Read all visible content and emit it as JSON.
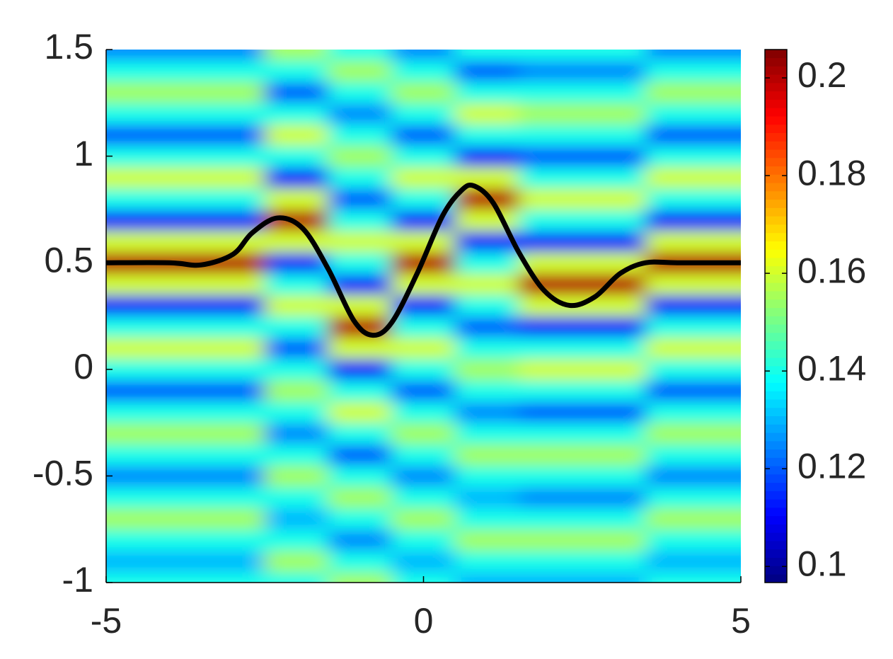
{
  "chart_data": {
    "type": "heatmap",
    "x": [
      -5,
      -4,
      -3,
      -2,
      -1,
      0,
      1,
      2,
      3,
      4,
      5
    ],
    "y": [
      -1,
      -0.9,
      -0.8,
      -0.7,
      -0.6,
      -0.5,
      -0.4,
      -0.3,
      -0.2,
      -0.1,
      0,
      0.1,
      0.2,
      0.3,
      0.4,
      0.5,
      0.6,
      0.7,
      0.8,
      0.9,
      1,
      1.1,
      1.2,
      1.3,
      1.4,
      1.5
    ],
    "z": [
      [
        0.14,
        0.14,
        0.14,
        0.14,
        0.155,
        0.14,
        0.13,
        0.13,
        0.13,
        0.14,
        0.14
      ],
      [
        0.13,
        0.13,
        0.13,
        0.155,
        0.14,
        0.13,
        0.14,
        0.14,
        0.14,
        0.13,
        0.13
      ],
      [
        0.14,
        0.14,
        0.14,
        0.14,
        0.125,
        0.14,
        0.155,
        0.155,
        0.155,
        0.14,
        0.14
      ],
      [
        0.155,
        0.155,
        0.155,
        0.13,
        0.14,
        0.155,
        0.14,
        0.14,
        0.14,
        0.155,
        0.155
      ],
      [
        0.14,
        0.14,
        0.14,
        0.14,
        0.155,
        0.14,
        0.13,
        0.125,
        0.125,
        0.14,
        0.14
      ],
      [
        0.125,
        0.125,
        0.125,
        0.155,
        0.14,
        0.125,
        0.14,
        0.14,
        0.14,
        0.125,
        0.125
      ],
      [
        0.14,
        0.14,
        0.14,
        0.14,
        0.12,
        0.14,
        0.155,
        0.155,
        0.155,
        0.14,
        0.14
      ],
      [
        0.155,
        0.155,
        0.155,
        0.125,
        0.14,
        0.155,
        0.14,
        0.14,
        0.14,
        0.155,
        0.155
      ],
      [
        0.14,
        0.14,
        0.14,
        0.14,
        0.16,
        0.14,
        0.125,
        0.12,
        0.12,
        0.14,
        0.14
      ],
      [
        0.12,
        0.12,
        0.12,
        0.155,
        0.14,
        0.12,
        0.14,
        0.14,
        0.14,
        0.12,
        0.12
      ],
      [
        0.14,
        0.14,
        0.14,
        0.14,
        0.11,
        0.14,
        0.155,
        0.16,
        0.16,
        0.14,
        0.14
      ],
      [
        0.16,
        0.16,
        0.16,
        0.12,
        0.16,
        0.16,
        0.14,
        0.14,
        0.14,
        0.16,
        0.16
      ],
      [
        0.14,
        0.14,
        0.14,
        0.14,
        0.2,
        0.14,
        0.12,
        0.11,
        0.11,
        0.14,
        0.14
      ],
      [
        0.11,
        0.11,
        0.11,
        0.16,
        0.16,
        0.11,
        0.14,
        0.16,
        0.16,
        0.11,
        0.11
      ],
      [
        0.16,
        0.16,
        0.16,
        0.14,
        0.11,
        0.16,
        0.16,
        0.2,
        0.2,
        0.16,
        0.16
      ],
      [
        0.2,
        0.2,
        0.2,
        0.11,
        0.14,
        0.2,
        0.14,
        0.16,
        0.16,
        0.2,
        0.2
      ],
      [
        0.16,
        0.16,
        0.16,
        0.16,
        0.16,
        0.16,
        0.11,
        0.11,
        0.11,
        0.16,
        0.16
      ],
      [
        0.11,
        0.11,
        0.11,
        0.2,
        0.14,
        0.11,
        0.16,
        0.14,
        0.14,
        0.11,
        0.11
      ],
      [
        0.14,
        0.14,
        0.14,
        0.16,
        0.12,
        0.14,
        0.2,
        0.16,
        0.16,
        0.14,
        0.14
      ],
      [
        0.16,
        0.16,
        0.16,
        0.11,
        0.14,
        0.16,
        0.16,
        0.14,
        0.14,
        0.16,
        0.16
      ],
      [
        0.14,
        0.14,
        0.14,
        0.14,
        0.155,
        0.14,
        0.11,
        0.12,
        0.12,
        0.14,
        0.14
      ],
      [
        0.12,
        0.12,
        0.12,
        0.16,
        0.14,
        0.12,
        0.14,
        0.14,
        0.14,
        0.12,
        0.12
      ],
      [
        0.14,
        0.14,
        0.14,
        0.14,
        0.125,
        0.14,
        0.16,
        0.155,
        0.155,
        0.14,
        0.14
      ],
      [
        0.155,
        0.155,
        0.155,
        0.12,
        0.14,
        0.155,
        0.14,
        0.14,
        0.14,
        0.155,
        0.155
      ],
      [
        0.14,
        0.14,
        0.14,
        0.14,
        0.155,
        0.14,
        0.12,
        0.125,
        0.125,
        0.14,
        0.14
      ],
      [
        0.125,
        0.125,
        0.125,
        0.155,
        0.14,
        0.125,
        0.14,
        0.14,
        0.14,
        0.125,
        0.125
      ]
    ],
    "clim": [
      0.0967,
      0.2058
    ],
    "colorbar_ticks": [
      0.1,
      0.12,
      0.14,
      0.16,
      0.18,
      0.2
    ],
    "colormap": "jet",
    "line": {
      "color": "#000000",
      "x": [
        -5,
        -4,
        -3.5,
        -3,
        -2.7,
        -2.3,
        -1.9,
        -1.5,
        -1.1,
        -0.8,
        -0.5,
        -0.1,
        0.3,
        0.6,
        0.8,
        1.1,
        1.5,
        1.9,
        2.3,
        2.7,
        3.1,
        3.5,
        4,
        5
      ],
      "y": [
        0.5,
        0.5,
        0.49,
        0.54,
        0.64,
        0.71,
        0.66,
        0.47,
        0.23,
        0.16,
        0.22,
        0.45,
        0.72,
        0.84,
        0.86,
        0.78,
        0.55,
        0.37,
        0.3,
        0.34,
        0.45,
        0.5,
        0.5,
        0.5
      ]
    },
    "xlim": [
      -5,
      5
    ],
    "ylim": [
      -1,
      1.5
    ],
    "xticks": [
      -5,
      0,
      5
    ],
    "yticks": [
      -1,
      -0.5,
      0,
      0.5,
      1,
      1.5
    ]
  }
}
